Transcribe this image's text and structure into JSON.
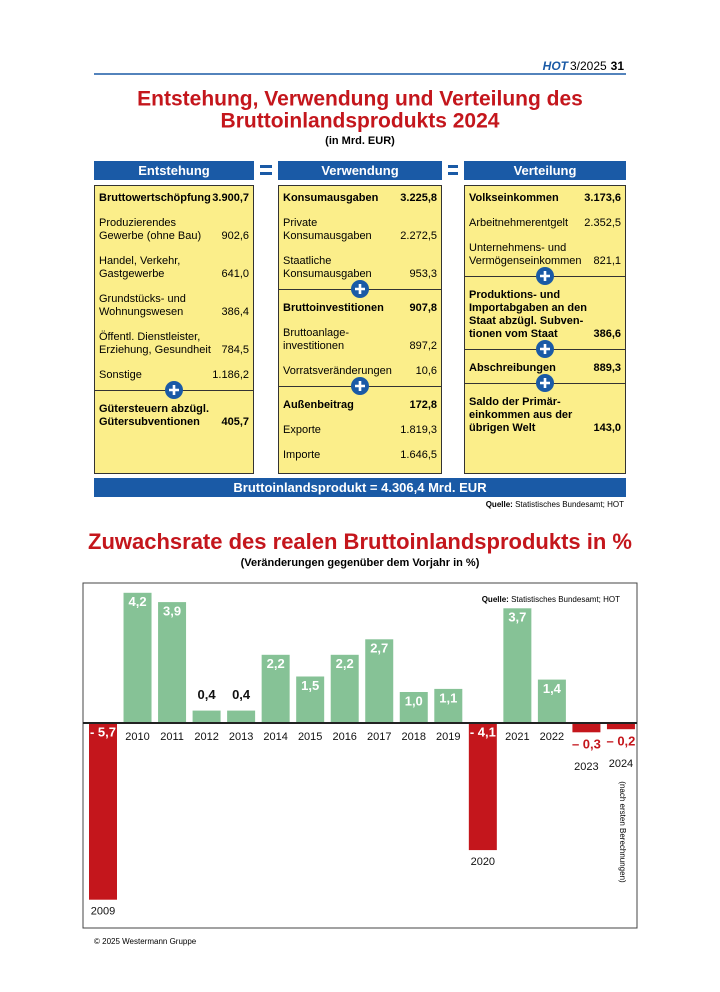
{
  "header": {
    "brand": "HOT",
    "issue": "3/2025",
    "page": "31"
  },
  "diagram": {
    "title": [
      "Entstehung, Verwendung und Verteilung des",
      "Bruttoinlandsprodukts 2024"
    ],
    "subtitle": "(in Mrd. EUR)",
    "columns": [
      {
        "header": "Entstehung",
        "groups": [
          {
            "head": {
              "label": [
                "Bruttowertschöpfung"
              ],
              "value": "3.900,7"
            },
            "items": [
              {
                "label": [
                  "Produzierendes",
                  "Gewerbe (ohne Bau)"
                ],
                "value": "902,6"
              },
              {
                "label": [
                  "Handel, Verkehr,",
                  "Gastgewerbe"
                ],
                "value": "641,0"
              },
              {
                "label": [
                  "Grundstücks- und",
                  "Wohnungswesen"
                ],
                "value": "386,4"
              },
              {
                "label": [
                  "Öffentl. Dienstleister,",
                  "Erziehung, Gesundheit"
                ],
                "value": "784,5"
              },
              {
                "label": [
                  "Sonstige"
                ],
                "value": "1.186,2"
              }
            ]
          },
          {
            "head": {
              "label": [
                "Gütersteuern abzügl.",
                "Gütersubventionen"
              ],
              "value": "405,7"
            }
          }
        ]
      },
      {
        "header": "Verwendung",
        "groups": [
          {
            "head": {
              "label": [
                "Konsumausgaben"
              ],
              "value": "3.225,8"
            },
            "items": [
              {
                "label": [
                  "Private",
                  "Konsumausgaben"
                ],
                "value": "2.272,5"
              },
              {
                "label": [
                  "Staatliche",
                  "Konsumausgaben"
                ],
                "value": "953,3"
              }
            ]
          },
          {
            "head": {
              "label": [
                "Bruttoinvestitionen"
              ],
              "value": "907,8"
            },
            "items": [
              {
                "label": [
                  "Bruttoanlage-",
                  "investitionen"
                ],
                "value": "897,2"
              },
              {
                "label": [
                  "Vorratsveränderungen"
                ],
                "value": "10,6"
              }
            ]
          },
          {
            "head": {
              "label": [
                "Außenbeitrag"
              ],
              "value": "172,8"
            },
            "items": [
              {
                "label": [
                  "Exporte"
                ],
                "value": "1.819,3"
              },
              {
                "label": [
                  "Importe"
                ],
                "value": "1.646,5"
              }
            ]
          }
        ]
      },
      {
        "header": "Verteilung",
        "groups": [
          {
            "head": {
              "label": [
                "Volkseinkommen"
              ],
              "value": "3.173,6"
            },
            "items": [
              {
                "label": [
                  "Arbeitnehmerentgelt"
                ],
                "value": "2.352,5"
              },
              {
                "label": [
                  "Unternehmens- und",
                  "Vermögenseinkommen"
                ],
                "value": "821,1"
              }
            ]
          },
          {
            "head": {
              "label": [
                "Produktions- und",
                "Importabgaben an den",
                "Staat abzügl. Subven-",
                "tionen vom Staat"
              ],
              "value": "386,6"
            }
          },
          {
            "head": {
              "label": [
                "Abschreibungen"
              ],
              "value": "889,3"
            }
          },
          {
            "head": {
              "label": [
                "Saldo der Primär-",
                "einkommen aus der",
                "übrigen Welt"
              ],
              "value": "143,0"
            }
          }
        ]
      }
    ],
    "total": "Bruttoinlandsprodukt = 4.306,4 Mrd. EUR",
    "source_label": "Quelle:",
    "source": "Statistisches Bundesamt; HOT"
  },
  "chart_data": {
    "type": "bar",
    "title": "Zuwachsrate des realen Bruttoinlandsprodukts in %",
    "subtitle": "(Veränderungen gegenüber dem Vorjahr in %)",
    "categories": [
      "2009",
      "2010",
      "2011",
      "2012",
      "2013",
      "2014",
      "2015",
      "2016",
      "2017",
      "2018",
      "2019",
      "2020",
      "2021",
      "2022",
      "2023",
      "2024"
    ],
    "values": [
      -5.7,
      4.2,
      3.9,
      0.4,
      0.4,
      2.2,
      1.5,
      2.2,
      2.7,
      1.0,
      1.1,
      -4.1,
      3.7,
      1.4,
      -0.3,
      -0.2
    ],
    "value_labels": [
      "- 5,7",
      "4,2",
      "3,9",
      "0,4",
      "0,4",
      "2,2",
      "1,5",
      "2,2",
      "2,7",
      "1,0",
      "1,1",
      "- 4,1",
      "3,7",
      "1,4",
      "– 0,3",
      "– 0,2"
    ],
    "colors": {
      "positive": "#86c296",
      "negative": "#c4161c"
    },
    "source_label": "Quelle:",
    "source": "Statistisches Bundesamt; HOT",
    "annotation": "(nach ersten Berechnungen)"
  },
  "footer": "© 2025 Westermann Gruppe"
}
